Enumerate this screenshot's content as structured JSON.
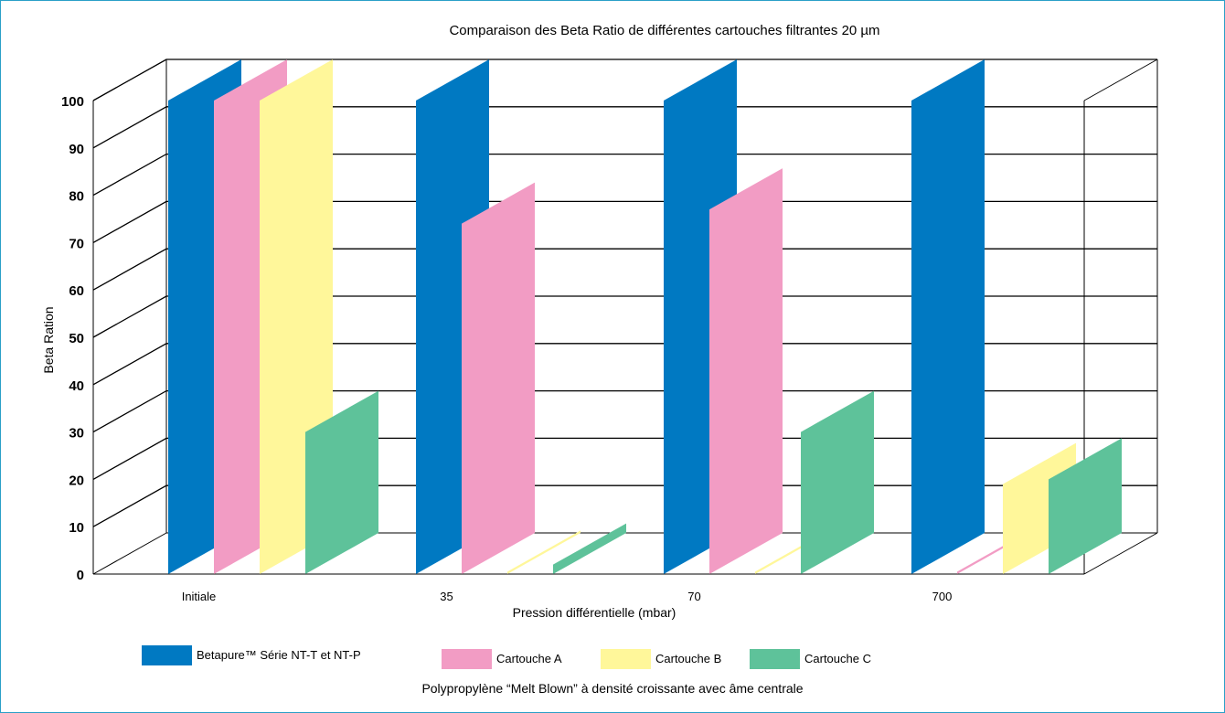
{
  "chart_data": {
    "type": "bar",
    "title": "Comparaison des Beta Ratio de différentes cartouches filtrantes 20 µm",
    "xlabel": "Pression différentielle (mbar)",
    "ylabel": "Beta Ration",
    "categories": [
      "Initiale",
      "35",
      "70",
      "700"
    ],
    "yticks": [
      "0",
      "10",
      "20",
      "30",
      "40",
      "50",
      "60",
      "70",
      "80",
      "90",
      "100"
    ],
    "ylim": [
      0,
      100
    ],
    "series": [
      {
        "name": "Betapure™ Série NT-T et NT-P",
        "color": "#0079c2",
        "values": [
          100,
          100,
          100,
          100
        ]
      },
      {
        "name": "Cartouche A",
        "color": "#f29cc4",
        "values": [
          100,
          74,
          77,
          0.5
        ]
      },
      {
        "name": "Cartouche B",
        "color": "#fff79a",
        "values": [
          100,
          0.5,
          0.5,
          19
        ]
      },
      {
        "name": "Cartouche C",
        "color": "#5ec29a",
        "values": [
          30,
          2,
          30,
          20
        ]
      }
    ],
    "grid": true,
    "legend_position": "bottom",
    "legend_note": "Polypropylène “Melt Blown” à densité croissante avec âme centrale"
  }
}
